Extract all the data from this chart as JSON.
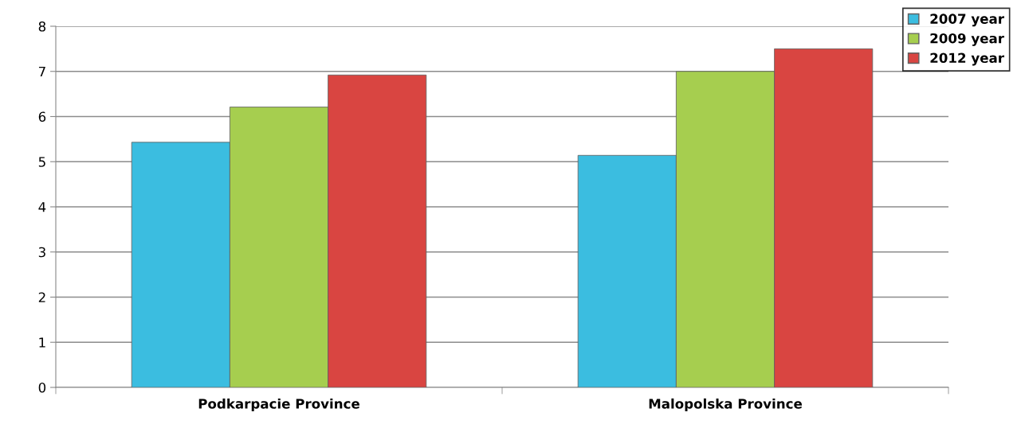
{
  "chart_data": {
    "type": "bar",
    "categories": [
      "Podkarpacie Province",
      "Malopolska Province"
    ],
    "series": [
      {
        "name": "2007 year",
        "color": "#3bbde0",
        "values": [
          5.43,
          5.14
        ]
      },
      {
        "name": "2009 year",
        "color": "#a6ce4f",
        "values": [
          6.21,
          7.0
        ]
      },
      {
        "name": "2012 year",
        "color": "#d94541",
        "values": [
          6.92,
          7.5
        ]
      }
    ],
    "ylim": [
      0,
      8
    ],
    "yticks": [
      0,
      1,
      2,
      3,
      4,
      5,
      6,
      7,
      8
    ],
    "grid": "y",
    "legend": "top right"
  }
}
